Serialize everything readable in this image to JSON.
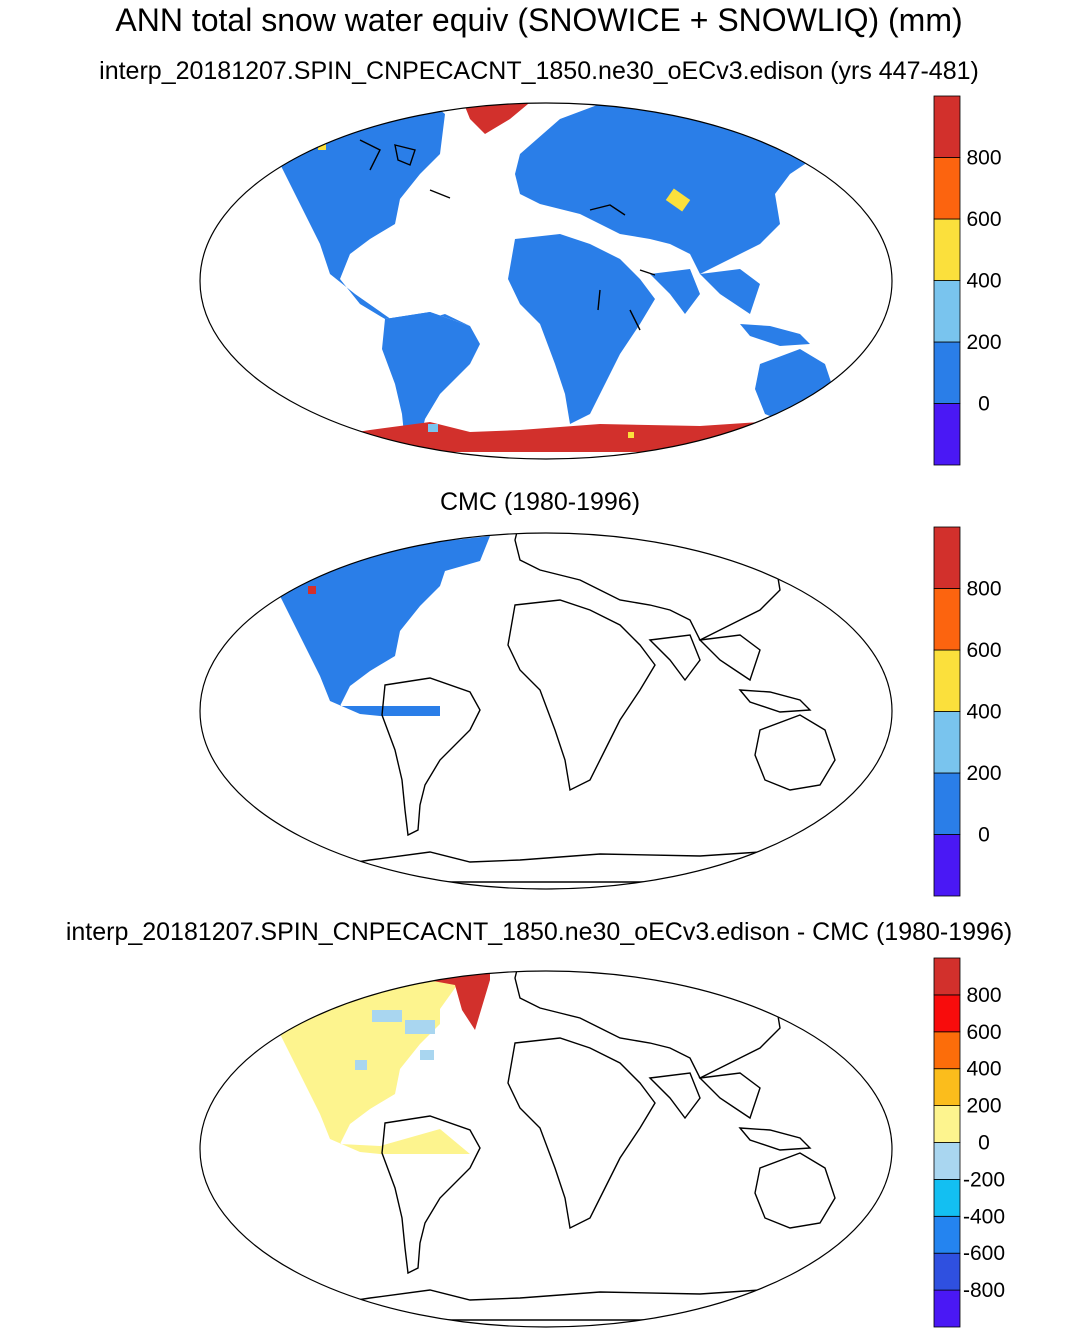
{
  "main_title": "ANN total snow water equiv (SNOWICE + SNOWLIQ) (mm)",
  "panels": [
    {
      "title": "interp_20181207.SPIN_CNPECACNT_1850.ne30_oECv3.edison (yrs 447-481)",
      "colorbar": {
        "colors": [
          "#4a18f5",
          "#2a7ee8",
          "#79c4ee",
          "#fbe03c",
          "#fc640f",
          "#d2302c"
        ],
        "labels": [
          "0",
          "200",
          "400",
          "600",
          "800"
        ]
      }
    },
    {
      "title": "CMC (1980-1996)",
      "colorbar": {
        "colors": [
          "#4a18f5",
          "#2a7ee8",
          "#79c4ee",
          "#fbe03c",
          "#fc640f",
          "#d2302c"
        ],
        "labels": [
          "0",
          "200",
          "400",
          "600",
          "800"
        ]
      }
    },
    {
      "title": "interp_20181207.SPIN_CNPECACNT_1850.ne30_oECv3.edison - CMC (1980-1996)",
      "colorbar": {
        "colors": [
          "#4a18f5",
          "#2f50e0",
          "#2484f0",
          "#13bff2",
          "#a9d6f0",
          "#fdf48e",
          "#fbbd1c",
          "#fc6d0a",
          "#f80c0c",
          "#d2302c"
        ],
        "labels": [
          "-800",
          "-600",
          "-400",
          "-200",
          "0",
          "200",
          "400",
          "600",
          "800"
        ]
      }
    }
  ]
}
